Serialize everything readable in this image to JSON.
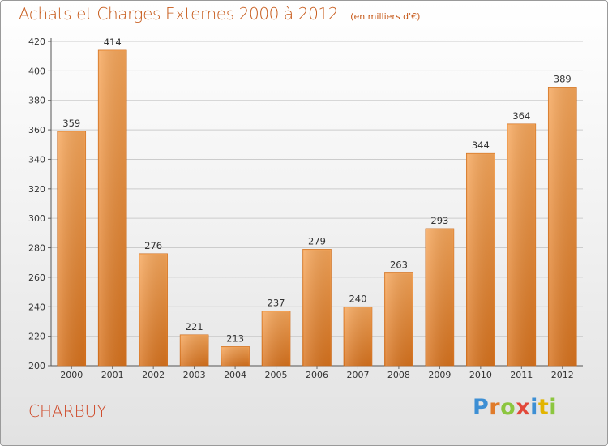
{
  "header": {
    "title": "Achats et Charges Externes 2000 à 2012",
    "subtitle": "(en milliers d'€)"
  },
  "footer": {
    "commune": "CHARBUY",
    "brand_letters": [
      "P",
      "r",
      "o",
      "x",
      "i",
      "t",
      "i"
    ],
    "brand_colors": [
      "#3d8fd4",
      "#e07b2a",
      "#8cc63f",
      "#e2483a",
      "#3d8fd4",
      "#e2b400",
      "#8cc63f"
    ]
  },
  "chart_data": {
    "type": "bar",
    "categories": [
      "2000",
      "2001",
      "2002",
      "2003",
      "2004",
      "2005",
      "2006",
      "2007",
      "2008",
      "2009",
      "2010",
      "2011",
      "2012"
    ],
    "values": [
      359,
      414,
      276,
      221,
      213,
      237,
      279,
      240,
      263,
      293,
      344,
      364,
      389
    ],
    "ylim": [
      200,
      420
    ],
    "yticks": [
      200,
      220,
      240,
      260,
      280,
      300,
      320,
      340,
      360,
      380,
      400,
      420
    ],
    "grid": true,
    "bar_color": "#ee8c2e",
    "grid_color": "#cccccc",
    "label_color": "#333333"
  }
}
